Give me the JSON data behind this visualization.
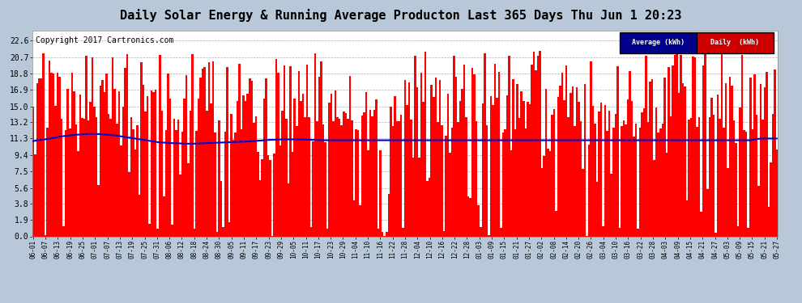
{
  "title": "Daily Solar Energy & Running Average Producton Last 365 Days Thu Jun 1 20:23",
  "copyright": "Copyright 2017 Cartronics.com",
  "yticks": [
    0.0,
    1.9,
    3.8,
    5.6,
    7.5,
    9.4,
    11.3,
    13.2,
    15.0,
    16.9,
    18.8,
    20.7,
    22.6
  ],
  "bar_color": "#FF0000",
  "avg_color": "#0000CD",
  "background_color": "#B8C8D8",
  "plot_bg_color": "#FFFFFF",
  "legend_avg_bg": "#00008B",
  "legend_daily_bg": "#CC0000",
  "legend_text_color": "#FFFFFF",
  "title_fontsize": 11,
  "copyright_fontsize": 7,
  "x_label_fontsize": 5.5,
  "y_label_fontsize": 7,
  "tick_labels": [
    "06-01",
    "06-07",
    "06-13",
    "06-19",
    "06-25",
    "07-01",
    "07-07",
    "07-13",
    "07-19",
    "07-25",
    "07-31",
    "08-06",
    "08-12",
    "08-18",
    "08-24",
    "08-30",
    "09-05",
    "09-11",
    "09-17",
    "09-23",
    "09-29",
    "10-05",
    "10-11",
    "10-17",
    "10-23",
    "10-29",
    "11-04",
    "11-10",
    "11-16",
    "11-22",
    "11-28",
    "12-04",
    "12-10",
    "12-16",
    "12-22",
    "12-28",
    "01-03",
    "01-09",
    "01-15",
    "01-21",
    "01-27",
    "02-02",
    "02-08",
    "02-14",
    "02-20",
    "02-26",
    "03-04",
    "03-10",
    "03-16",
    "03-22",
    "03-28",
    "04-03",
    "04-09",
    "04-15",
    "04-21",
    "04-27",
    "05-03",
    "05-09",
    "05-15",
    "05-21",
    "05-27"
  ],
  "avg_values": [
    11.0,
    11.05,
    11.1,
    11.12,
    11.15,
    11.18,
    11.22,
    11.26,
    11.3,
    11.35,
    11.4,
    11.45,
    11.5,
    11.55,
    11.58,
    11.62,
    11.65,
    11.68,
    11.7,
    11.72,
    11.74,
    11.76,
    11.78,
    11.8,
    11.82,
    11.83,
    11.84,
    11.85,
    11.84,
    11.83,
    11.82,
    11.8,
    11.78,
    11.76,
    11.74,
    11.72,
    11.7,
    11.67,
    11.64,
    11.6,
    11.56,
    11.52,
    11.48,
    11.44,
    11.4,
    11.36,
    11.32,
    11.28,
    11.24,
    11.2,
    11.16,
    11.12,
    11.08,
    11.04,
    11.0,
    10.96,
    10.92,
    10.88,
    10.86,
    10.84,
    10.82,
    10.8,
    10.78,
    10.77,
    10.76,
    10.75,
    10.74,
    10.73,
    10.72,
    10.71,
    10.7,
    10.7,
    10.7,
    10.7,
    10.71,
    10.72,
    10.73,
    10.74,
    10.75,
    10.76,
    10.77,
    10.78,
    10.79,
    10.8,
    10.81,
    10.82,
    10.83,
    10.84,
    10.85,
    10.86,
    10.87,
    10.88,
    10.89,
    10.9,
    10.91,
    10.92,
    10.93,
    10.94,
    10.95,
    10.97,
    10.99,
    11.01,
    11.03,
    11.05,
    11.07,
    11.09,
    11.11,
    11.13,
    11.14,
    11.15,
    11.16,
    11.17,
    11.18,
    11.19,
    11.2,
    11.2,
    11.2,
    11.2,
    11.2,
    11.2,
    11.2,
    11.2,
    11.2,
    11.19,
    11.18,
    11.17,
    11.16,
    11.15,
    11.14,
    11.13,
    11.12,
    11.11,
    11.1,
    11.1,
    11.1,
    11.1,
    11.1,
    11.1,
    11.1,
    11.1,
    11.1,
    11.1,
    11.1,
    11.1,
    11.1,
    11.1,
    11.1,
    11.1,
    11.1,
    11.1,
    11.1,
    11.1,
    11.1,
    11.1,
    11.1,
    11.1,
    11.1,
    11.1,
    11.1,
    11.1,
    11.1,
    11.1,
    11.1,
    11.1,
    11.1,
    11.1,
    11.1,
    11.1,
    11.1,
    11.1,
    11.1,
    11.1,
    11.1,
    11.1,
    11.1,
    11.1,
    11.1,
    11.1,
    11.1,
    11.1,
    11.1,
    11.1,
    11.1,
    11.1,
    11.1,
    11.1,
    11.1,
    11.1,
    11.1,
    11.1,
    11.1,
    11.1,
    11.1,
    11.1,
    11.1,
    11.1,
    11.1,
    11.1,
    11.1,
    11.1,
    11.1,
    11.1,
    11.1,
    11.1,
    11.1,
    11.1,
    11.1,
    11.1,
    11.1,
    11.1,
    11.1,
    11.1,
    11.1,
    11.1,
    11.1,
    11.1,
    11.1,
    11.1,
    11.1,
    11.1,
    11.1,
    11.1,
    11.1,
    11.1,
    11.1,
    11.1,
    11.1,
    11.1,
    11.1,
    11.1,
    11.1,
    11.1,
    11.1,
    11.1,
    11.1,
    11.1,
    11.1,
    11.1,
    11.1,
    11.1,
    11.1,
    11.1,
    11.1,
    11.1,
    11.1,
    11.1,
    11.1,
    11.1,
    11.1,
    11.1,
    11.1,
    11.1,
    11.1,
    11.1,
    11.1,
    11.1,
    11.1,
    11.1,
    11.1,
    11.1,
    11.1,
    11.1,
    11.1,
    11.1,
    11.1,
    11.1,
    11.1,
    11.1,
    11.1,
    11.1,
    11.1,
    11.1,
    11.1,
    11.1,
    11.1,
    11.1,
    11.1,
    11.1,
    11.1,
    11.1,
    11.1,
    11.1,
    11.1,
    11.1,
    11.1,
    11.1,
    11.1,
    11.1,
    11.1,
    11.1,
    11.1,
    11.1,
    11.1,
    11.1,
    11.1,
    11.1,
    11.1,
    11.1,
    11.1,
    11.1,
    11.1,
    11.1,
    11.1,
    11.1,
    11.1,
    11.1,
    11.1,
    11.1,
    11.1,
    11.1,
    11.1,
    11.1,
    11.1,
    11.1,
    11.1,
    11.1,
    11.1,
    11.1,
    11.1,
    11.1,
    11.1,
    11.1,
    11.1,
    11.1,
    11.1,
    11.1,
    11.1,
    11.1,
    11.1,
    11.15,
    11.2,
    11.25,
    11.28,
    11.3,
    11.3,
    11.3,
    11.3,
    11.3,
    11.3,
    11.3,
    11.3
  ]
}
